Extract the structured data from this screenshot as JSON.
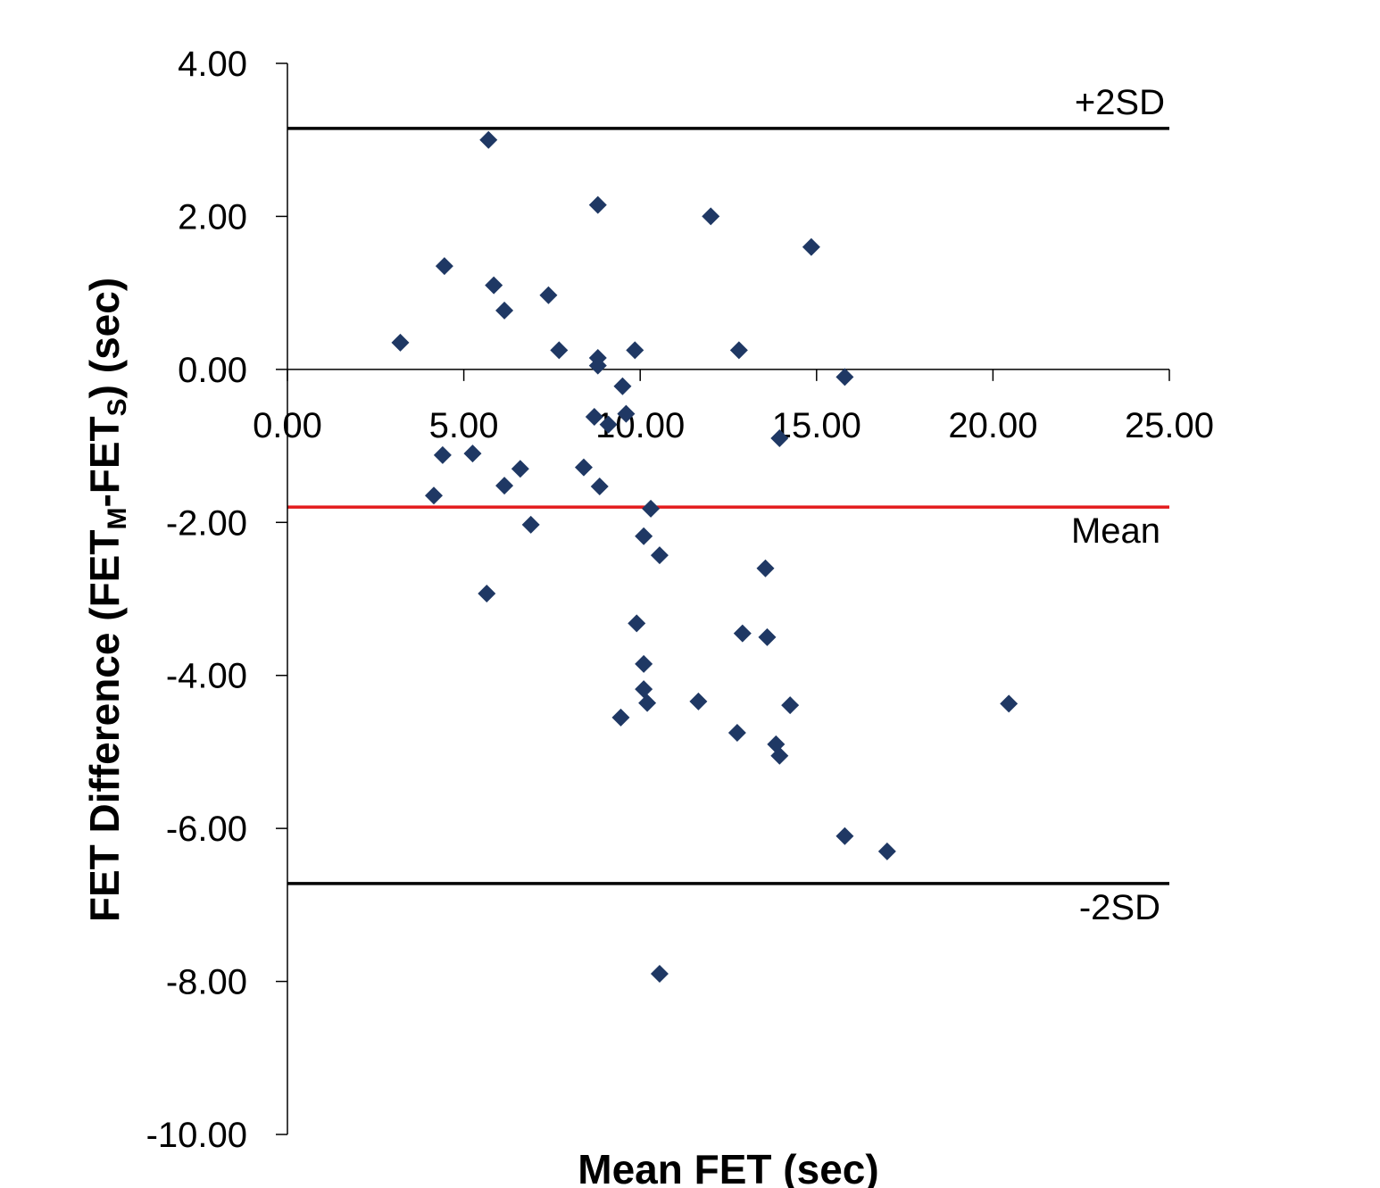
{
  "chart_data": {
    "type": "scatter",
    "title": "",
    "xlabel": "Mean FET (sec)",
    "ylabel": {
      "parts": [
        {
          "text": "FET Difference (FET",
          "sub": false
        },
        {
          "text": "M",
          "sub": true
        },
        {
          "text": "-FET",
          "sub": false
        },
        {
          "text": "S",
          "sub": true
        },
        {
          "text": ") (sec)",
          "sub": false
        }
      ]
    },
    "xlim": [
      0,
      25
    ],
    "ylim": [
      -10,
      4
    ],
    "x_ticks": [
      "0.00",
      "5.00",
      "10.00",
      "15.00",
      "20.00",
      "25.00"
    ],
    "y_ticks": [
      "4.00",
      "2.00",
      "0.00",
      "-2.00",
      "-4.00",
      "-6.00",
      "-8.00",
      "-10.00"
    ],
    "grid": false,
    "marker": "diamond",
    "marker_color": "#1f3864",
    "reference_lines": [
      {
        "label": "+2SD",
        "y": 3.15,
        "color": "#000000"
      },
      {
        "label": "Mean",
        "y": -1.8,
        "color": "#e31a1c"
      },
      {
        "label": "-2SD",
        "y": -6.72,
        "color": "#000000"
      }
    ],
    "points": [
      {
        "x": 5.7,
        "y": 3.0
      },
      {
        "x": 8.8,
        "y": 2.15
      },
      {
        "x": 12.0,
        "y": 2.0
      },
      {
        "x": 14.85,
        "y": 1.6
      },
      {
        "x": 4.45,
        "y": 1.35
      },
      {
        "x": 5.85,
        "y": 1.1
      },
      {
        "x": 7.4,
        "y": 0.97
      },
      {
        "x": 6.15,
        "y": 0.77
      },
      {
        "x": 3.2,
        "y": 0.35
      },
      {
        "x": 7.7,
        "y": 0.25
      },
      {
        "x": 9.85,
        "y": 0.25
      },
      {
        "x": 12.8,
        "y": 0.25
      },
      {
        "x": 8.8,
        "y": 0.15
      },
      {
        "x": 8.8,
        "y": 0.05
      },
      {
        "x": 15.8,
        "y": -0.1
      },
      {
        "x": 9.5,
        "y": -0.22
      },
      {
        "x": 9.6,
        "y": -0.58
      },
      {
        "x": 8.7,
        "y": -0.62
      },
      {
        "x": 9.1,
        "y": -0.72
      },
      {
        "x": 13.95,
        "y": -0.9
      },
      {
        "x": 4.4,
        "y": -1.12
      },
      {
        "x": 5.25,
        "y": -1.1
      },
      {
        "x": 6.6,
        "y": -1.3
      },
      {
        "x": 8.4,
        "y": -1.28
      },
      {
        "x": 6.15,
        "y": -1.52
      },
      {
        "x": 8.85,
        "y": -1.53
      },
      {
        "x": 4.15,
        "y": -1.65
      },
      {
        "x": 10.3,
        "y": -1.82
      },
      {
        "x": 6.9,
        "y": -2.03
      },
      {
        "x": 10.1,
        "y": -2.18
      },
      {
        "x": 10.55,
        "y": -2.43
      },
      {
        "x": 13.55,
        "y": -2.6
      },
      {
        "x": 5.65,
        "y": -2.93
      },
      {
        "x": 9.9,
        "y": -3.32
      },
      {
        "x": 12.9,
        "y": -3.45
      },
      {
        "x": 13.6,
        "y": -3.5
      },
      {
        "x": 10.1,
        "y": -3.85
      },
      {
        "x": 10.1,
        "y": -4.18
      },
      {
        "x": 10.2,
        "y": -4.36
      },
      {
        "x": 11.65,
        "y": -4.34
      },
      {
        "x": 14.25,
        "y": -4.39
      },
      {
        "x": 20.45,
        "y": -4.37
      },
      {
        "x": 9.45,
        "y": -4.55
      },
      {
        "x": 12.75,
        "y": -4.75
      },
      {
        "x": 13.85,
        "y": -4.9
      },
      {
        "x": 13.95,
        "y": -5.05
      },
      {
        "x": 15.8,
        "y": -6.1
      },
      {
        "x": 17.0,
        "y": -6.3
      },
      {
        "x": 10.55,
        "y": -7.9
      }
    ]
  }
}
